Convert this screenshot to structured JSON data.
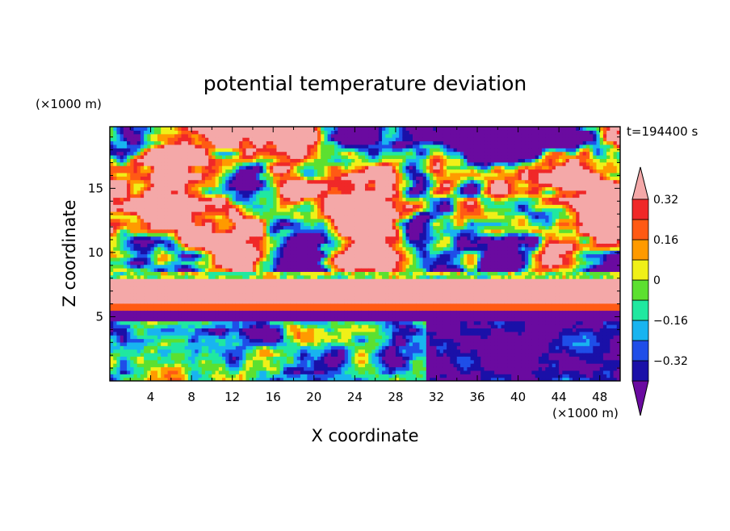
{
  "chart_data": {
    "type": "heatmap",
    "title": "potential temperature deviation",
    "xlabel": "X coordinate",
    "ylabel": "Z coordinate",
    "x_unit": "(×1000 m)",
    "y_unit": "(×1000 m)",
    "time_label": "t=194400 s",
    "xlim": [
      0,
      50
    ],
    "ylim": [
      0,
      19.8
    ],
    "x_ticks": [
      4,
      8,
      12,
      16,
      20,
      24,
      28,
      32,
      36,
      40,
      44,
      48
    ],
    "y_ticks": [
      5,
      10,
      15
    ],
    "colorbar": {
      "levels": [
        -0.4,
        -0.32,
        -0.24,
        -0.16,
        -0.08,
        0,
        0.08,
        0.16,
        0.24,
        0.32,
        0.4
      ],
      "labeled_levels": [
        "0.32",
        "0.16",
        "0",
        "−0.16",
        "−0.32"
      ],
      "colors": [
        "#6a0aa0",
        "#1a10a8",
        "#1f4ee8",
        "#18b4f0",
        "#20e8a0",
        "#5ce030",
        "#f0f018",
        "#ff9a00",
        "#ff5a14",
        "#f02828",
        "#f4a8a8"
      ]
    },
    "layers": [
      {
        "z_range": [
          17,
          19.8
        ],
        "dominant_value": "mixed +0.4 / -0.4"
      },
      {
        "z_range": [
          12,
          17
        ],
        "dominant_value": "mixed +0.4 / -0.4"
      },
      {
        "z_range": [
          8,
          12
        ],
        "dominant_value": "mixed +0.4 / -0.4"
      },
      {
        "z_range": [
          6,
          8
        ],
        "dominant_value": "+0.4 band"
      },
      {
        "z_range": [
          4.5,
          6
        ],
        "dominant_value": "-0.4 band"
      },
      {
        "z_range": [
          0,
          4.5
        ],
        "dominant_value": "x<31: -0.1 to +0.3; x>31: -0.4 to -0.2"
      }
    ]
  }
}
